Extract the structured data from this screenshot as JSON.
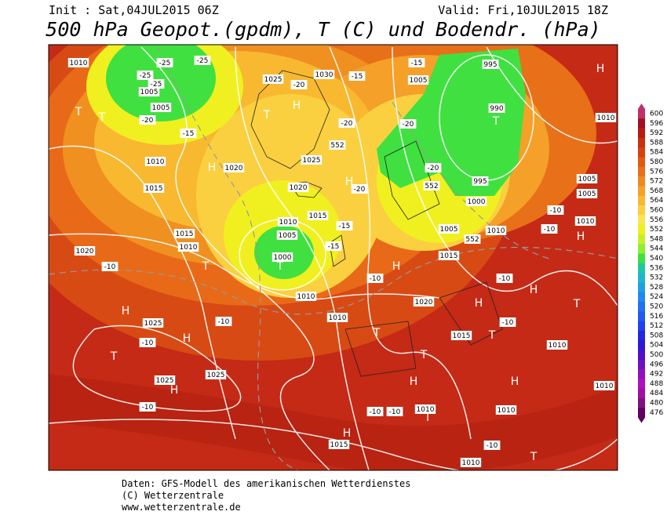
{
  "header": {
    "init": "Init : Sat,04JUL2015 06Z",
    "valid": "Valid: Fri,10JUL2015 18Z",
    "title": "500 hPa Geopot.(gpdm), T (C) und Bodendr. (hPa)"
  },
  "legend": {
    "items": [
      {
        "label": "600",
        "color": "#c0306a"
      },
      {
        "label": "596",
        "color": "#a01020"
      },
      {
        "label": "592",
        "color": "#b51c10"
      },
      {
        "label": "588",
        "color": "#c83010"
      },
      {
        "label": "584",
        "color": "#d84010"
      },
      {
        "label": "580",
        "color": "#e05a10"
      },
      {
        "label": "576",
        "color": "#e87018"
      },
      {
        "label": "572",
        "color": "#f08820"
      },
      {
        "label": "568",
        "color": "#f5a028"
      },
      {
        "label": "564",
        "color": "#f8b830"
      },
      {
        "label": "560",
        "color": "#fad040"
      },
      {
        "label": "556",
        "color": "#fae650"
      },
      {
        "label": "552",
        "color": "#f0f020"
      },
      {
        "label": "548",
        "color": "#c8f028"
      },
      {
        "label": "544",
        "color": "#90f030"
      },
      {
        "label": "540",
        "color": "#40e040"
      },
      {
        "label": "536",
        "color": "#20c8a0"
      },
      {
        "label": "532",
        "color": "#20b8c8"
      },
      {
        "label": "528",
        "color": "#20a0e0"
      },
      {
        "label": "524",
        "color": "#2088f0"
      },
      {
        "label": "520",
        "color": "#2070f0"
      },
      {
        "label": "516",
        "color": "#2058f0"
      },
      {
        "label": "512",
        "color": "#2040f0"
      },
      {
        "label": "508",
        "color": "#2028e0"
      },
      {
        "label": "504",
        "color": "#3018d0"
      },
      {
        "label": "500",
        "color": "#5010c8"
      },
      {
        "label": "496",
        "color": "#7010c0"
      },
      {
        "label": "492",
        "color": "#9010c0"
      },
      {
        "label": "488",
        "color": "#b010c0"
      },
      {
        "label": "484",
        "color": "#a010a0"
      },
      {
        "label": "480",
        "color": "#801080"
      },
      {
        "label": "476",
        "color": "#600060"
      }
    ]
  },
  "map": {
    "letters": [
      "H",
      "H",
      "H",
      "H",
      "H",
      "H",
      "H",
      "H",
      "H",
      "H",
      "H",
      "H",
      "H",
      "H",
      "T",
      "T",
      "T",
      "T",
      "T",
      "T",
      "T",
      "T",
      "T",
      "T",
      "T",
      "T",
      "T"
    ],
    "labels": [
      "1010",
      "1005",
      "1005",
      "1025",
      "1030",
      "1005",
      "995",
      "990",
      "1010",
      "1010",
      "1015",
      "1020",
      "1025",
      "1020",
      "1010",
      "1015",
      "1005",
      "1000",
      "1015",
      "1010",
      "1020",
      "1010",
      "1010",
      "1020",
      "1015",
      "1010",
      "1010",
      "1025",
      "1025",
      "1025",
      "1010",
      "1010",
      "1015",
      "1010",
      "1005",
      "1005",
      "1010",
      "995",
      "1000",
      "1005",
      "1010",
      "1015",
      "552",
      "552",
      "552",
      "-25",
      "-25",
      "-25",
      "-25",
      "-20",
      "-20",
      "-20",
      "-20",
      "-20",
      "-20",
      "-15",
      "-15",
      "-15",
      "-15",
      "-15",
      "-10",
      "-10",
      "-10",
      "-10",
      "-10",
      "-10",
      "-10",
      "-10",
      "-10",
      "-10",
      "-10",
      "-10"
    ]
  },
  "footer": {
    "lines": [
      "Daten: GFS-Modell des amerikanischen Wetterdienstes",
      "(C) Wetterzentrale",
      "www.wetterzentrale.de"
    ]
  }
}
